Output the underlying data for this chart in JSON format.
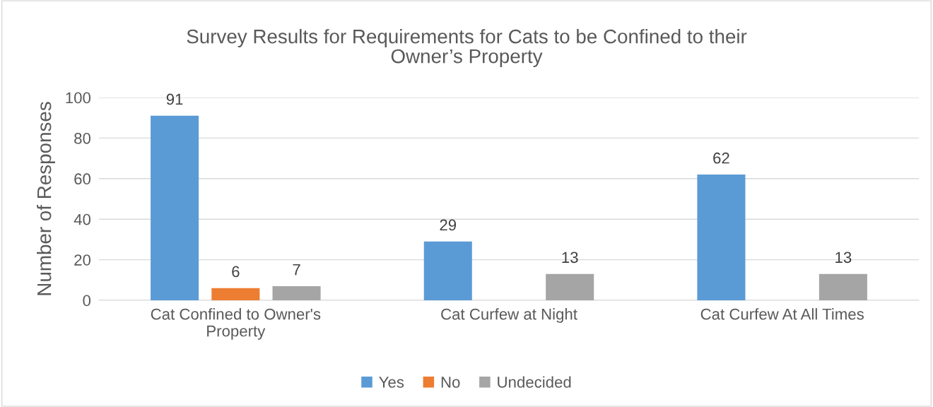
{
  "chart_data": {
    "type": "bar",
    "title": "Survey Results for Requirements for Cats to be Confined to their Owner’s Property",
    "ylabel": "Number of Responses",
    "categories": [
      "Cat Confined to Owner's Property",
      "Cat Curfew at Night",
      "Cat Curfew At All Times"
    ],
    "series": [
      {
        "name": "Yes",
        "color": "#5b9bd5",
        "values": [
          91,
          29,
          62
        ]
      },
      {
        "name": "No",
        "color": "#ed7d31",
        "values": [
          6,
          null,
          null
        ]
      },
      {
        "name": "Undecided",
        "color": "#a5a5a5",
        "values": [
          7,
          13,
          13
        ]
      }
    ],
    "ylim": [
      0,
      100
    ],
    "yticks": [
      0,
      20,
      40,
      60,
      80,
      100
    ],
    "grid": "y",
    "legend": "bottom",
    "data_labels": true
  }
}
